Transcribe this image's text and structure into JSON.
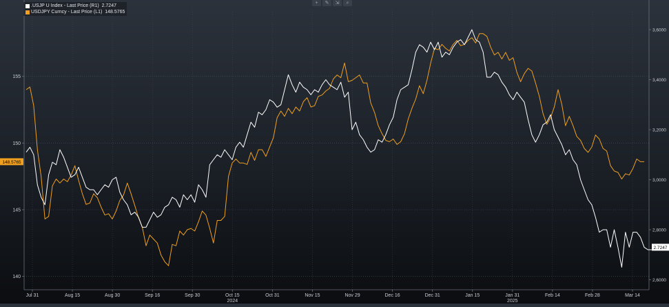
{
  "legend": {
    "items": [
      {
        "label": ".USJP U Index - Last Price (R1)",
        "value": "2.7247",
        "color": "#ffffff"
      },
      {
        "label": "USDJPY Curncy - Last Price (L1)",
        "value": "148.5765",
        "color": "#f0a020"
      }
    ]
  },
  "toolbar": {
    "icons": [
      "plus-icon",
      "pencil-icon",
      "chart-icon",
      "magnifier-icon"
    ],
    "glyphs": [
      "+",
      "✎",
      "⇲",
      "⌕"
    ]
  },
  "chart_data": {
    "type": "line",
    "x_ticks": [
      "Jul 31",
      "Aug 15",
      "Aug 30",
      "Sep 16",
      "Sep 30",
      "Oct 15",
      "Oct 31",
      "Nov 15",
      "Nov 29",
      "Dec 16",
      "Dec 31",
      "Jan 15",
      "Jan 31",
      "Feb 14",
      "Feb 28",
      "Mar 14"
    ],
    "year_labels": [
      {
        "after_tick": "Oct 15",
        "label": "2024"
      },
      {
        "after_tick": "Jan 31",
        "label": "2025"
      }
    ],
    "left_axis": {
      "ticks": [
        140,
        145,
        150,
        155
      ],
      "range": [
        139,
        160
      ]
    },
    "right_axis": {
      "ticks": [
        "2,6000",
        "2,8000",
        "3,0000",
        "3,2000",
        "3,4000",
        "3,6000"
      ],
      "values": [
        2.6,
        2.8,
        3.0,
        3.2,
        3.4,
        3.6
      ],
      "range": [
        2.56,
        3.68
      ]
    },
    "last_labels": {
      "left": "148.5765",
      "right": "2.7247"
    },
    "grid": true,
    "series": [
      {
        "name": "USDJPY Curncy - Last Price (L1)",
        "axis": "left",
        "color": "#f0a020",
        "values": [
          154,
          154.2,
          152.8,
          149.5,
          147.5,
          144.3,
          144.5,
          146.8,
          147.3,
          147.0,
          147.3,
          147.1,
          147.6,
          148.3,
          147.2,
          146.2,
          145.4,
          145.5,
          146.2,
          145.9,
          145.2,
          144.6,
          144.7,
          144.3,
          144.9,
          145.7,
          146.1,
          147.0,
          146.2,
          145.3,
          144.4,
          143.7,
          142.3,
          143.1,
          142.8,
          142.5,
          141.6,
          141.1,
          140.8,
          142.4,
          142.3,
          143.4,
          143.1,
          143.5,
          143.6,
          143.4,
          144.1,
          144.9,
          144.6,
          143.6,
          142.5,
          144.2,
          144.2,
          144.5,
          147.5,
          148.5,
          148.8,
          148.5,
          148.5,
          148.4,
          149.3,
          148.7,
          149.5,
          149.5,
          149.0,
          149.7,
          150.4,
          151.9,
          152.4,
          152.0,
          152.6,
          152.2,
          152.7,
          152.4,
          153.1,
          153.4,
          152.7,
          152.8,
          153.5,
          153.6,
          153.9,
          154.1,
          154.8,
          155.1,
          154.9,
          156.0,
          154.6,
          154.7,
          154.9,
          155.1,
          154.5,
          154.5,
          153.0,
          152.3,
          151.3,
          150.7,
          150.2,
          150.1,
          150.3,
          149.9,
          150.1,
          150.7,
          151.8,
          152.6,
          153.3,
          154.3,
          153.7,
          154.7,
          156.0,
          157.1,
          157.0,
          157.4,
          157.1,
          156.9,
          157.4,
          157.7,
          157.3,
          157.4,
          157.7,
          157.9,
          157.5,
          158.2,
          158.2,
          158.0,
          157.2,
          156.6,
          156.8,
          156.3,
          156.8,
          156.2,
          156.4,
          155.3,
          154.6,
          155.2,
          155.6,
          155.4,
          154.5,
          153.5,
          152.2,
          151.4,
          151.9,
          152.7,
          154.0,
          152.9,
          151.3,
          152.0,
          151.3,
          150.5,
          150.2,
          149.6,
          149.3,
          149.7,
          150.6,
          150.3,
          149.6,
          149.4,
          148.3,
          147.9,
          147.8,
          147.3,
          147.7,
          147.6,
          148.1,
          148.8,
          148.6,
          148.6
        ]
      },
      {
        "name": ".USJP U Index - Last Price (R1)",
        "axis": "right",
        "color": "#ffffff",
        "values": [
          3.11,
          3.13,
          3.1,
          2.98,
          2.93,
          2.9,
          3.02,
          3.07,
          3.06,
          3.12,
          3.09,
          3.05,
          3.01,
          3.02,
          3.05,
          3.01,
          2.97,
          2.96,
          2.96,
          2.94,
          2.96,
          2.98,
          2.97,
          3.0,
          3.01,
          2.95,
          2.92,
          2.9,
          2.86,
          2.87,
          2.85,
          2.81,
          2.81,
          2.84,
          2.87,
          2.85,
          2.86,
          2.89,
          2.9,
          2.93,
          2.92,
          2.89,
          2.94,
          2.92,
          2.94,
          2.91,
          2.98,
          2.96,
          2.93,
          3.06,
          3.08,
          3.1,
          3.09,
          3.12,
          3.1,
          3.08,
          3.13,
          3.15,
          3.13,
          3.18,
          3.23,
          3.21,
          3.27,
          3.26,
          3.28,
          3.32,
          3.31,
          3.29,
          3.3,
          3.36,
          3.42,
          3.38,
          3.35,
          3.39,
          3.37,
          3.36,
          3.34,
          3.36,
          3.35,
          3.38,
          3.4,
          3.38,
          3.37,
          3.36,
          3.39,
          3.33,
          3.35,
          3.2,
          3.23,
          3.18,
          3.16,
          3.13,
          3.11,
          3.12,
          3.16,
          3.15,
          3.18,
          3.22,
          3.25,
          3.32,
          3.36,
          3.37,
          3.38,
          3.44,
          3.51,
          3.54,
          3.53,
          3.51,
          3.55,
          3.52,
          3.55,
          3.49,
          3.51,
          3.5,
          3.53,
          3.55,
          3.56,
          3.54,
          3.57,
          3.6,
          3.56,
          3.55,
          3.51,
          3.41,
          3.41,
          3.43,
          3.42,
          3.39,
          3.37,
          3.34,
          3.32,
          3.35,
          3.33,
          3.31,
          3.24,
          3.18,
          3.15,
          3.18,
          3.22,
          3.23,
          3.26,
          3.2,
          3.17,
          3.14,
          3.1,
          3.12,
          3.08,
          3.06,
          3.0,
          2.96,
          2.92,
          2.9,
          2.85,
          2.79,
          2.8,
          2.8,
          2.73,
          2.8,
          2.73,
          2.65,
          2.79,
          2.73,
          2.79,
          2.79,
          2.77,
          2.73,
          2.72,
          2.72
        ]
      }
    ]
  }
}
